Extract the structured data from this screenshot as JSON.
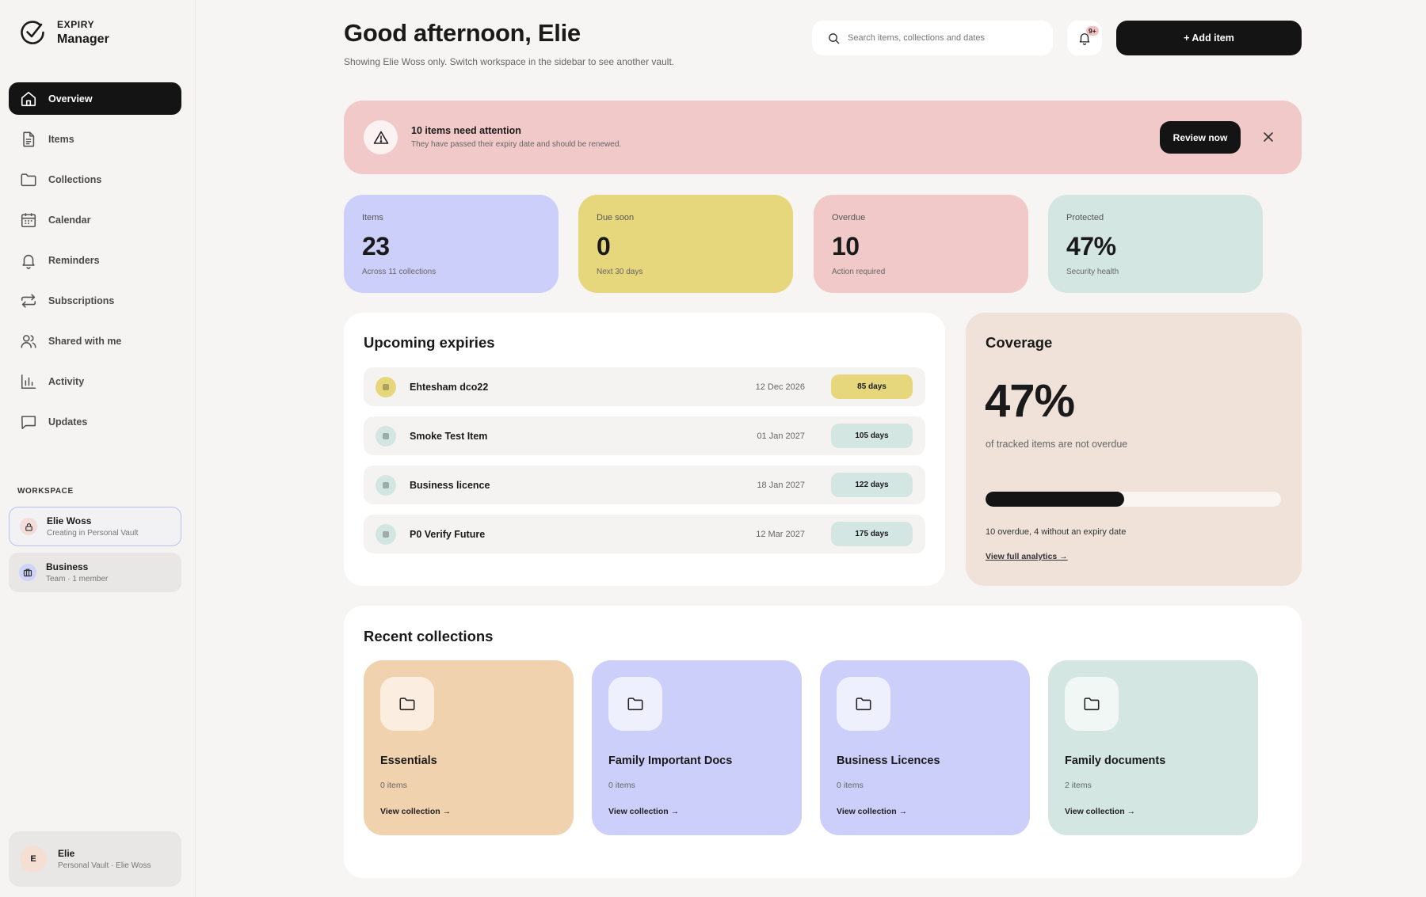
{
  "brand": {
    "top": "EXPIRY",
    "bottom": "Manager"
  },
  "nav": [
    {
      "label": "Overview",
      "icon": "home-icon",
      "active": true
    },
    {
      "label": "Items",
      "icon": "document-icon"
    },
    {
      "label": "Collections",
      "icon": "folder-icon"
    },
    {
      "label": "Calendar",
      "icon": "calendar-icon"
    },
    {
      "label": "Reminders",
      "icon": "bell-icon"
    },
    {
      "label": "Subscriptions",
      "icon": "repeat-icon"
    },
    {
      "label": "Shared with me",
      "icon": "users-icon"
    },
    {
      "label": "Activity",
      "icon": "bar-chart-icon"
    },
    {
      "label": "Updates",
      "icon": "message-icon"
    }
  ],
  "workspace": {
    "label": "WORKSPACE",
    "items": [
      {
        "name": "Elie Woss",
        "sub": "Creating in Personal Vault",
        "icon": "lock-icon"
      },
      {
        "name": "Business",
        "sub": "Team · 1 member",
        "icon": "briefcase-icon"
      }
    ]
  },
  "user": {
    "initial": "E",
    "name": "Elie",
    "sub": "Personal Vault · Elie Woss"
  },
  "header": {
    "greeting": "Good afternoon, Elie",
    "subtitle": "Showing Elie Woss only. Switch workspace in the sidebar to see another vault.",
    "search_placeholder": "Search items, collections and dates",
    "notification_badge": "9+",
    "add_label": "+ Add item"
  },
  "alert": {
    "title": "10 items need attention",
    "subtitle": "They have passed their expiry date and should be renewed.",
    "button": "Review now"
  },
  "stats": [
    {
      "label": "Items",
      "value": "23",
      "sub": "Across 11 collections",
      "color": "#cbcffa"
    },
    {
      "label": "Due soon",
      "value": "0",
      "sub": "Next 30 days",
      "color": "#e6d77c"
    },
    {
      "label": "Overdue",
      "value": "10",
      "sub": "Action required",
      "color": "#f0c9c8"
    },
    {
      "label": "Protected",
      "value": "47%",
      "sub": "Security health",
      "color": "#d3e6e2"
    }
  ],
  "upcoming": {
    "title": "Upcoming expiries",
    "rows": [
      {
        "name": "Ehtesham dco22",
        "date": "12 Dec 2026",
        "days": "85 days",
        "color": "#e6d77c"
      },
      {
        "name": "Smoke Test Item",
        "date": "01 Jan 2027",
        "days": "105 days",
        "color": "#d3e6e2"
      },
      {
        "name": "Business licence",
        "date": "18 Jan 2027",
        "days": "122 days",
        "color": "#d3e6e2"
      },
      {
        "name": "P0 Verify Future",
        "date": "12 Mar 2027",
        "days": "175 days",
        "color": "#d3e6e2"
      }
    ]
  },
  "coverage": {
    "title": "Coverage",
    "value": "47%",
    "fraction": 0.47,
    "description": "of tracked items are not overdue",
    "note": "10 overdue, 4 without an expiry date",
    "link": "View full analytics →"
  },
  "collections": {
    "title": "Recent collections",
    "items": [
      {
        "name": "Essentials",
        "count": "0 items",
        "link": "View collection →",
        "color": "#f0d3ae",
        "icon_bg": "#fbeee0"
      },
      {
        "name": "Family Important Docs",
        "count": "0 items",
        "link": "View collection →",
        "color": "#cbcffa",
        "icon_bg": "#eef0fd"
      },
      {
        "name": "Business Licences",
        "count": "0 items",
        "link": "View collection →",
        "color": "#cbcffa",
        "icon_bg": "#eef0fd"
      },
      {
        "name": "Family documents",
        "count": "2 items",
        "link": "View collection →",
        "color": "#d3e6e2",
        "icon_bg": "#f0f7f5"
      }
    ]
  }
}
